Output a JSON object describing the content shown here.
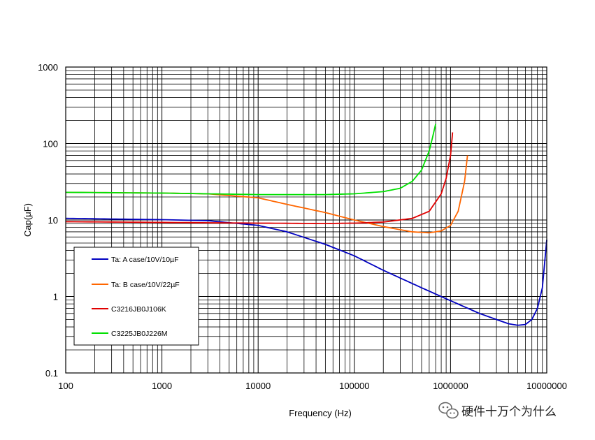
{
  "chart_data": {
    "type": "line",
    "title": "",
    "xlabel": "Frequency (Hz)",
    "ylabel": "Cap(μF)",
    "xscale": "log",
    "yscale": "log",
    "xlim": [
      100,
      10000000
    ],
    "ylim": [
      0.1,
      1000
    ],
    "grid": true,
    "legend_position": "lower-left",
    "x_tick_labels": [
      "100",
      "1000",
      "10000",
      "100000",
      "1000000",
      "10000000"
    ],
    "y_tick_labels": [
      "0.1",
      "1",
      "10",
      "100",
      "1000"
    ],
    "series": [
      {
        "name": "Ta: A case/10V/10µF",
        "color": "#0000c0",
        "x": [
          100,
          300,
          1000,
          3000,
          10000,
          20000,
          50000,
          100000,
          200000,
          500000,
          1000000,
          2000000,
          3000000,
          4000000,
          5000000,
          6000000,
          7000000,
          8000000,
          9000000,
          10000000
        ],
        "y": [
          10.5,
          10.3,
          10.1,
          9.8,
          8.5,
          7.0,
          4.8,
          3.4,
          2.2,
          1.3,
          0.88,
          0.6,
          0.5,
          0.44,
          0.42,
          0.43,
          0.5,
          0.7,
          1.3,
          5.5
        ]
      },
      {
        "name": "Ta: B case/10V/22µF",
        "color": "#ff6600",
        "x": [
          100,
          1000,
          3000,
          10000,
          20000,
          50000,
          100000,
          200000,
          400000,
          600000,
          800000,
          1000000,
          1200000,
          1400000,
          1500000
        ],
        "y": [
          23,
          22.5,
          22,
          19.5,
          16,
          12.5,
          10,
          8.2,
          7.0,
          6.8,
          7.2,
          8.5,
          13,
          32,
          70
        ]
      },
      {
        "name": "C3216JB0J106K",
        "color": "#e00000",
        "x": [
          100,
          1000,
          10000,
          50000,
          100000,
          200000,
          400000,
          600000,
          800000,
          900000,
          1000000,
          1050000
        ],
        "y": [
          9.5,
          9.3,
          9.1,
          9.0,
          9.1,
          9.4,
          10.5,
          13,
          22,
          35,
          70,
          140
        ]
      },
      {
        "name": "C3225JB0J226M",
        "color": "#00e000",
        "x": [
          100,
          1000,
          3000,
          10000,
          50000,
          100000,
          200000,
          300000,
          400000,
          500000,
          600000,
          650000,
          700000
        ],
        "y": [
          23,
          22.5,
          22,
          21.5,
          21.5,
          22,
          23.5,
          26,
          32,
          45,
          80,
          120,
          180
        ]
      }
    ]
  },
  "watermark": {
    "icon": "wechat-icon",
    "text": "硬件十万个为什么"
  }
}
